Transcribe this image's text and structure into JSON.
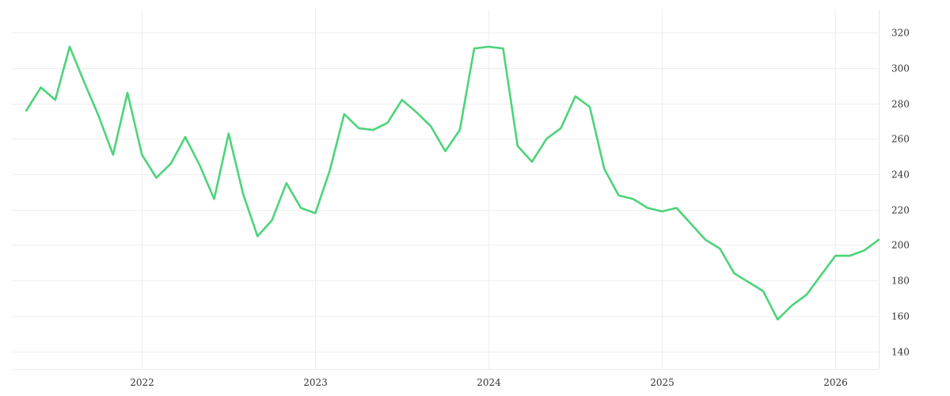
{
  "chart_data": {
    "type": "line",
    "title": "",
    "xlabel": "",
    "ylabel": "",
    "x_ticks": [
      "2022",
      "2023",
      "2024",
      "2025",
      "2026"
    ],
    "y_ticks": [
      140,
      160,
      180,
      200,
      220,
      240,
      260,
      280,
      300,
      320
    ],
    "ylim": [
      130,
      333
    ],
    "xlim": [
      "2021-04",
      "2026-04"
    ],
    "grid": true,
    "y_axis_side": "right",
    "legend": "none",
    "series": [
      {
        "color": "#4cd47a",
        "x": [
          "2021-05",
          "2021-06",
          "2021-07",
          "2021-08",
          "2021-09",
          "2021-10",
          "2021-11",
          "2021-12",
          "2022-01",
          "2022-02",
          "2022-03",
          "2022-04",
          "2022-05",
          "2022-06",
          "2022-07",
          "2022-08",
          "2022-09",
          "2022-10",
          "2022-11",
          "2022-12",
          "2023-01",
          "2023-02",
          "2023-03",
          "2023-04",
          "2023-05",
          "2023-06",
          "2023-07",
          "2023-08",
          "2023-09",
          "2023-10",
          "2023-11",
          "2023-12",
          "2024-01",
          "2024-02",
          "2024-03",
          "2024-04",
          "2024-05",
          "2024-06",
          "2024-07",
          "2024-08",
          "2024-09",
          "2024-10",
          "2024-11",
          "2024-12",
          "2025-01",
          "2025-02",
          "2025-03",
          "2025-04",
          "2025-05",
          "2025-06",
          "2025-07",
          "2025-08",
          "2025-09",
          "2025-10",
          "2025-11",
          "2025-12",
          "2026-01",
          "2026-02",
          "2026-03",
          "2026-04"
        ],
        "values": [
          276,
          289,
          282,
          312,
          292,
          273,
          251,
          286,
          251,
          238,
          246,
          261,
          245,
          226,
          263,
          229,
          205,
          214,
          235,
          221,
          218,
          242,
          274,
          266,
          265,
          269,
          282,
          275,
          267,
          253,
          265,
          311,
          312,
          311,
          256,
          247,
          260,
          266,
          284,
          278,
          243,
          228,
          226,
          221,
          219,
          221,
          212,
          203,
          198,
          184,
          179,
          174,
          158,
          166,
          172,
          183,
          194,
          194,
          197,
          203
        ]
      }
    ]
  }
}
